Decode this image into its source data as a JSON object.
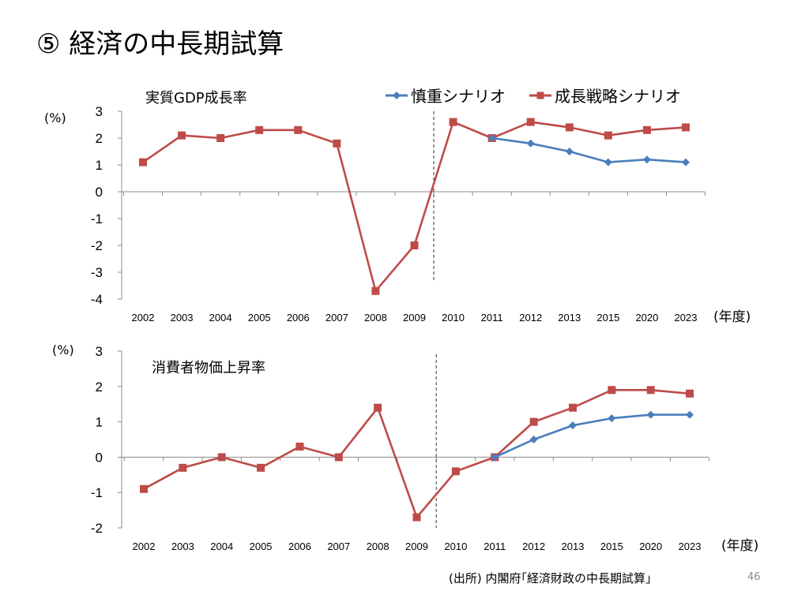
{
  "slide": {
    "title": "⑤ 経済の中長期試算",
    "source": "(出所)  内閣府｢経済財政の中長期試算｣",
    "page_number": "46"
  },
  "legend": [
    {
      "name": "慎重シナリオ",
      "color": "#4a7ebb",
      "marker": "diamond"
    },
    {
      "name": "成長戦略シナリオ",
      "color": "#be4b48",
      "marker": "square"
    }
  ],
  "chart_data": [
    {
      "type": "line",
      "title": "実質GDP成長率",
      "ylabel": "(%)",
      "xlabel": "(年度)",
      "categories": [
        "2002",
        "2003",
        "2004",
        "2005",
        "2006",
        "2007",
        "2008",
        "2009",
        "2010",
        "2011",
        "2012",
        "2013",
        "2015",
        "2020",
        "2023"
      ],
      "ylim": [
        -4,
        3
      ],
      "yticks": [
        3,
        2,
        1,
        0,
        -1,
        -2,
        -3,
        -4
      ],
      "divider_after_category": "2009",
      "series": [
        {
          "name": "慎重シナリオ",
          "color": "#4a7ebb",
          "marker": "diamond",
          "values": [
            null,
            null,
            null,
            null,
            null,
            null,
            null,
            null,
            null,
            2.0,
            1.8,
            1.5,
            1.1,
            1.2,
            1.1
          ]
        },
        {
          "name": "成長戦略シナリオ",
          "color": "#be4b48",
          "marker": "square",
          "values": [
            1.1,
            2.1,
            2.0,
            2.3,
            2.3,
            1.8,
            -3.7,
            -2.0,
            2.6,
            2.0,
            2.6,
            2.4,
            2.1,
            2.3,
            2.4
          ]
        }
      ]
    },
    {
      "type": "line",
      "title": "消費者物価上昇率",
      "ylabel": "(%)",
      "xlabel": "(年度)",
      "categories": [
        "2002",
        "2003",
        "2004",
        "2005",
        "2006",
        "2007",
        "2008",
        "2009",
        "2010",
        "2011",
        "2012",
        "2013",
        "2015",
        "2020",
        "2023"
      ],
      "ylim": [
        -2,
        3
      ],
      "yticks": [
        3,
        2,
        1,
        0,
        -1,
        -2
      ],
      "divider_after_category": "2009",
      "series": [
        {
          "name": "慎重シナリオ",
          "color": "#4a7ebb",
          "marker": "diamond",
          "values": [
            null,
            null,
            null,
            null,
            null,
            null,
            null,
            null,
            null,
            0.0,
            0.5,
            0.9,
            1.1,
            1.2,
            1.2
          ]
        },
        {
          "name": "成長戦略シナリオ",
          "color": "#be4b48",
          "marker": "square",
          "values": [
            -0.9,
            -0.3,
            0.0,
            -0.3,
            0.3,
            0.0,
            1.4,
            -1.7,
            -0.4,
            0.0,
            1.0,
            1.4,
            1.9,
            1.9,
            1.8
          ]
        }
      ]
    }
  ]
}
